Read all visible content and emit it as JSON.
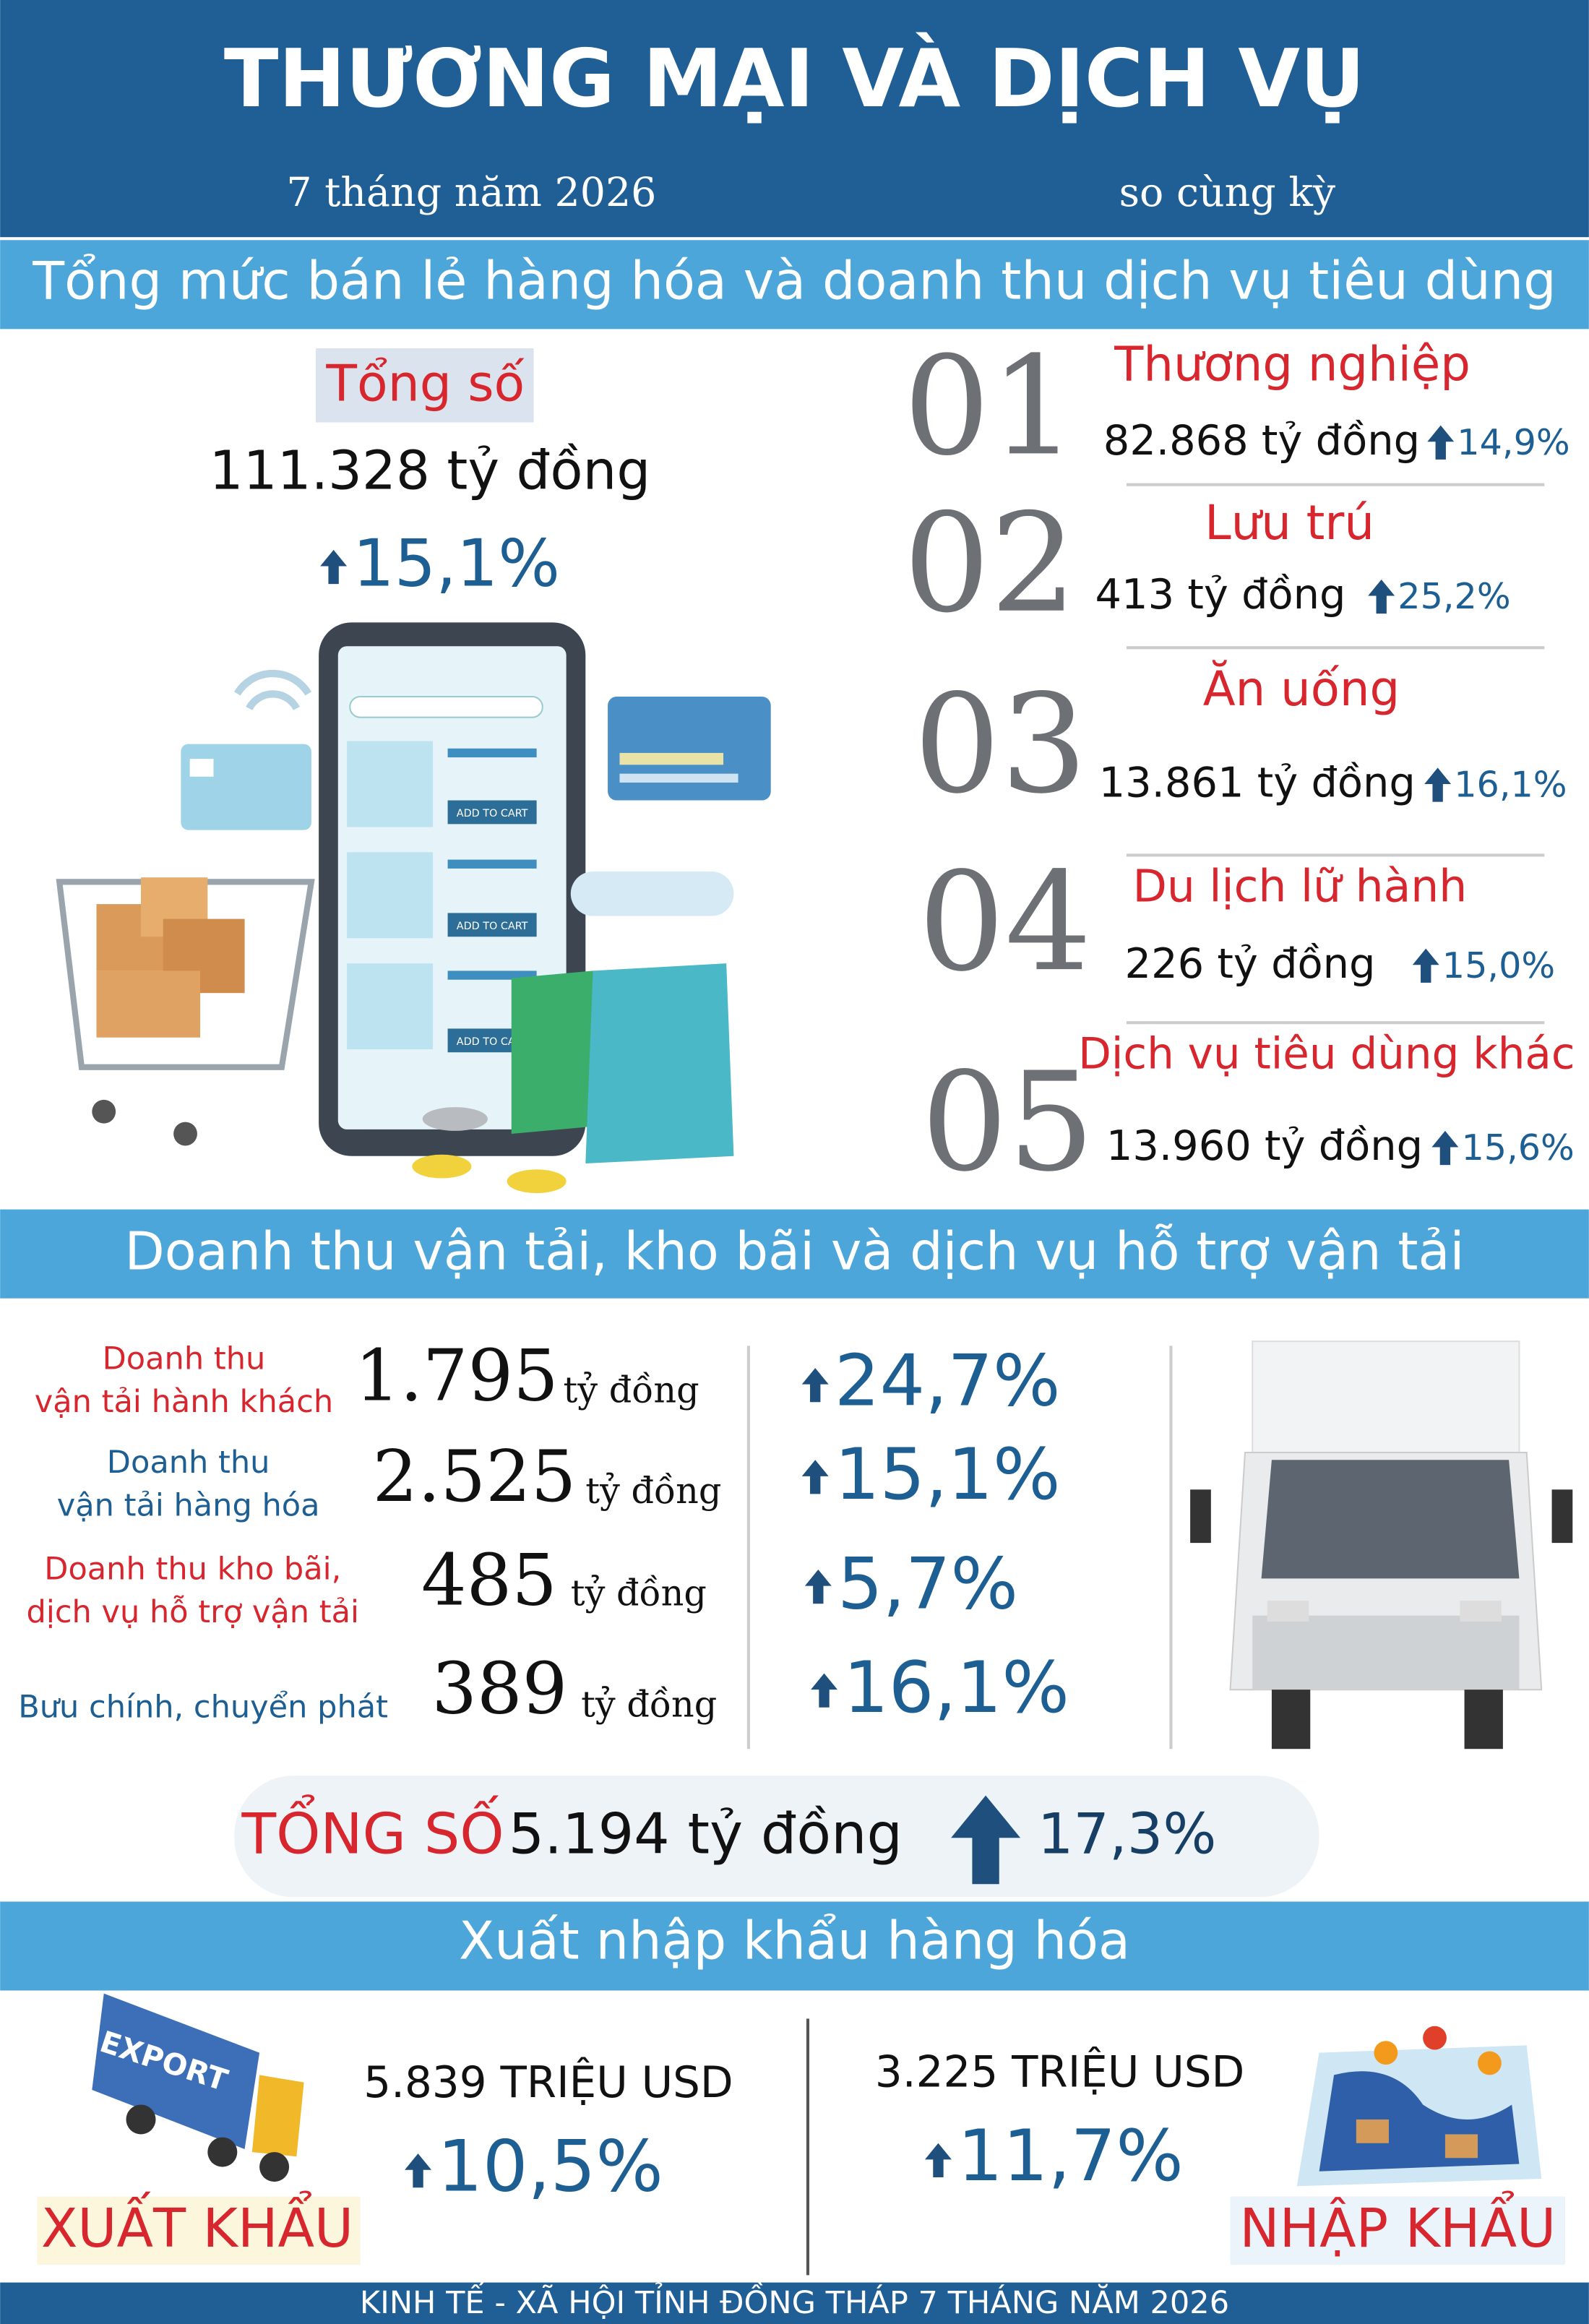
{
  "header": {
    "title": "THƯƠNG MẠI VÀ DỊCH VỤ",
    "period": "7 tháng năm 2026",
    "comparison": "so cùng kỳ"
  },
  "retail": {
    "title": "Tổng mức bán lẻ hàng hóa và doanh thu dịch vụ tiêu dùng",
    "total_label": "Tổng số",
    "total_value": "111.328 tỷ đồng",
    "total_growth": "15,1%",
    "items": [
      {
        "number": "01",
        "name": "Thương nghiệp",
        "value": "82.868 tỷ đồng",
        "growth": "14,9%"
      },
      {
        "number": "02",
        "name": "Lưu trú",
        "value": "413 tỷ đồng",
        "growth": "25,2%"
      },
      {
        "number": "03",
        "name": "Ăn uống",
        "value": "13.861 tỷ đồng",
        "growth": "16,1%"
      },
      {
        "number": "04",
        "name": "Du lịch lữ hành",
        "value": "226 tỷ đồng",
        "growth": "15,0%"
      },
      {
        "number": "05",
        "name": "Dịch vụ tiêu dùng khác",
        "value": "13.960 tỷ đồng",
        "growth": "15,6%"
      }
    ]
  },
  "illustration": {
    "add_to_cart": "ADD TO CART",
    "export_badge": "EXPORT"
  },
  "transport": {
    "title": "Doanh thu vận tải, kho bãi và dịch vụ hỗ trợ vận tải",
    "items": [
      {
        "name_lines": [
          "Doanh thu",
          "vận tải hành khách"
        ],
        "value": "1.795",
        "unit": "tỷ đồng",
        "growth": "24,7%"
      },
      {
        "name_lines": [
          "Doanh thu",
          "vận tải hàng hóa"
        ],
        "value": "2.525",
        "unit": "tỷ đồng",
        "growth": "15,1%"
      },
      {
        "name_lines": [
          "Doanh thu kho bãi,",
          "dịch vụ hỗ trợ vận tải"
        ],
        "value": "485",
        "unit": "tỷ đồng",
        "growth": "5,7%"
      },
      {
        "name_lines": [
          "Bưu chính, chuyển phát"
        ],
        "value": "389",
        "unit": "tỷ đồng",
        "growth": "16,1%"
      }
    ],
    "total_label": "TỔNG SỐ",
    "total_value": "5.194 tỷ đồng",
    "total_growth": "17,3%"
  },
  "trade": {
    "title": "Xuất nhập khẩu hàng hóa",
    "export": {
      "label": "XUẤT KHẨU",
      "value": "5.839 TRIỆU USD",
      "growth": "10,5%"
    },
    "import": {
      "label": "NHẬP KHẨU",
      "value": "3.225 TRIỆU USD",
      "growth": "11,7%"
    }
  },
  "footer": "KINH TẾ - XÃ HỘI TỈNH ĐỒNG THÁP 7 THÁNG NĂM 2026"
}
